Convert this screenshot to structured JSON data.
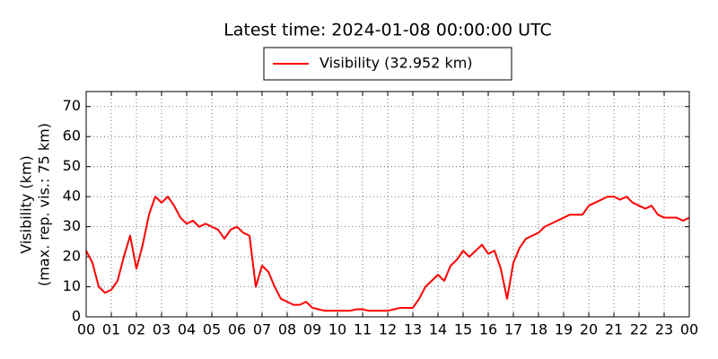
{
  "chart_data": {
    "type": "line",
    "title": "Latest time: 2024-01-08 00:00:00 UTC",
    "y_label": [
      "Visibility (km)",
      "(max. rep. vis.: 75 km)"
    ],
    "x": [
      0,
      0.25,
      0.5,
      0.75,
      1,
      1.25,
      1.5,
      1.75,
      2,
      2.25,
      2.5,
      2.75,
      3,
      3.25,
      3.5,
      3.75,
      4,
      4.25,
      4.5,
      4.75,
      5,
      5.25,
      5.5,
      5.75,
      6,
      6.25,
      6.5,
      6.75,
      7,
      7.25,
      7.5,
      7.75,
      8,
      8.25,
      8.5,
      8.75,
      9,
      9.25,
      9.5,
      9.75,
      10,
      10.25,
      10.5,
      10.75,
      11,
      11.25,
      11.5,
      11.75,
      12,
      12.25,
      12.5,
      12.75,
      13,
      13.25,
      13.5,
      13.75,
      14,
      14.25,
      14.5,
      14.75,
      15,
      15.25,
      15.5,
      15.75,
      16,
      16.25,
      16.5,
      16.75,
      17,
      17.25,
      17.5,
      17.75,
      18,
      18.25,
      18.5,
      18.75,
      19,
      19.25,
      19.5,
      19.75,
      20,
      20.25,
      20.5,
      20.75,
      21,
      21.25,
      21.5,
      21.75,
      22,
      22.25,
      22.5,
      22.75,
      23,
      23.25,
      23.5,
      23.75,
      24
    ],
    "series": [
      {
        "name": "Visibility (32.952 km)",
        "color": "#ff0000",
        "values": [
          22,
          18,
          10,
          8,
          9,
          12,
          20,
          27,
          16,
          24,
          34,
          40,
          38,
          40,
          37,
          33,
          31,
          32,
          30,
          31,
          30,
          29,
          26,
          29,
          30,
          28,
          27,
          10,
          17,
          15,
          10,
          6,
          5,
          4,
          4,
          5,
          3,
          2.5,
          2,
          2,
          2,
          2,
          2,
          2.5,
          2.5,
          2,
          2,
          2,
          2,
          2.5,
          3,
          3,
          3,
          6,
          10,
          12,
          14,
          12,
          17,
          19,
          22,
          20,
          22,
          24,
          21,
          22,
          16,
          6,
          18,
          23,
          26,
          27,
          28,
          30,
          31,
          32,
          33,
          34,
          34,
          34,
          37,
          38,
          39,
          40,
          40,
          39,
          40,
          38,
          37,
          36,
          37,
          34,
          33,
          33,
          33,
          32,
          33
        ]
      }
    ],
    "xlim": [
      0,
      24
    ],
    "xticks": [
      {
        "value": 0,
        "label": "00"
      },
      {
        "value": 1,
        "label": "01"
      },
      {
        "value": 2,
        "label": "02"
      },
      {
        "value": 3,
        "label": "03"
      },
      {
        "value": 4,
        "label": "04"
      },
      {
        "value": 5,
        "label": "05"
      },
      {
        "value": 6,
        "label": "06"
      },
      {
        "value": 7,
        "label": "07"
      },
      {
        "value": 8,
        "label": "08"
      },
      {
        "value": 9,
        "label": "09"
      },
      {
        "value": 10,
        "label": "10"
      },
      {
        "value": 11,
        "label": "11"
      },
      {
        "value": 12,
        "label": "12"
      },
      {
        "value": 13,
        "label": "13"
      },
      {
        "value": 14,
        "label": "14"
      },
      {
        "value": 15,
        "label": "15"
      },
      {
        "value": 16,
        "label": "16"
      },
      {
        "value": 17,
        "label": "17"
      },
      {
        "value": 18,
        "label": "18"
      },
      {
        "value": 19,
        "label": "19"
      },
      {
        "value": 20,
        "label": "20"
      },
      {
        "value": 21,
        "label": "21"
      },
      {
        "value": 22,
        "label": "22"
      },
      {
        "value": 23,
        "label": "23"
      },
      {
        "value": 24,
        "label": "00"
      }
    ],
    "ylim": [
      0,
      75
    ],
    "yticks": [
      0,
      10,
      20,
      30,
      40,
      50,
      60,
      70
    ],
    "grid": true,
    "legend": "top"
  }
}
